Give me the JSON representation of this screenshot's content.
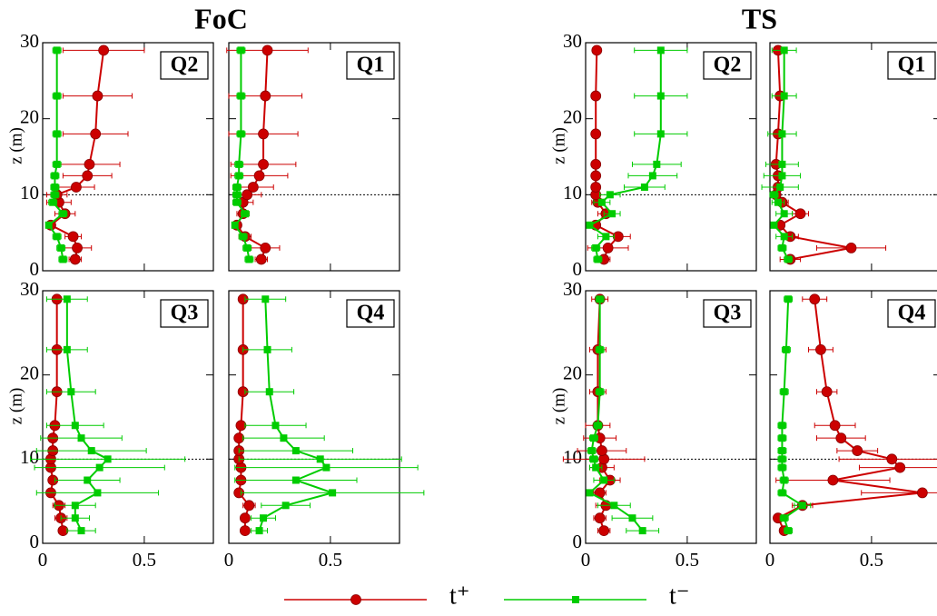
{
  "chart_data": {
    "type": "line",
    "ylabel": "z (m)",
    "z": [
      1.5,
      3,
      4.5,
      6,
      7.5,
      9,
      10,
      11,
      12.5,
      14,
      18,
      23,
      29
    ],
    "xlim": [
      0,
      0.84
    ],
    "ylim": [
      0,
      30
    ],
    "xticks": [
      0,
      0.5
    ],
    "yticks": [
      0,
      10,
      20,
      30
    ],
    "hline": 10,
    "series": [
      {
        "name": "t⁺",
        "color": "#cc0000",
        "marker": "circle"
      },
      {
        "name": "t⁻",
        "color": "#00cc00",
        "marker": "square"
      }
    ],
    "groups": [
      {
        "title": "FoC",
        "panels": [
          {
            "label": "Q2",
            "series": [
              {
                "values": [
                  0.16,
                  0.17,
                  0.15,
                  0.04,
                  0.11,
                  0.08,
                  0.07,
                  0.165,
                  0.22,
                  0.23,
                  0.26,
                  0.27,
                  0.3
                ],
                "errors": [
                  0.03,
                  0.07,
                  0.04,
                  0.02,
                  0.05,
                  0.06,
                  0.05,
                  0.09,
                  0.12,
                  0.15,
                  0.16,
                  0.17,
                  0.2
                ]
              },
              {
                "values": [
                  0.1,
                  0.09,
                  0.07,
                  0.03,
                  0.1,
                  0.05,
                  0.06,
                  0.06,
                  0.06,
                  0.07,
                  0.07,
                  0.07,
                  0.07
                ],
                "errors": [
                  0.02,
                  0.02,
                  0.02,
                  0.01,
                  0.02,
                  0.02,
                  0.02,
                  0.02,
                  0.02,
                  0.02,
                  0.02,
                  0.02,
                  0.02
                ]
              }
            ]
          },
          {
            "label": "Q1",
            "series": [
              {
                "values": [
                  0.16,
                  0.18,
                  0.08,
                  0.04,
                  0.07,
                  0.07,
                  0.09,
                  0.12,
                  0.15,
                  0.17,
                  0.17,
                  0.18,
                  0.19
                ],
                "errors": [
                  0.03,
                  0.07,
                  0.03,
                  0.02,
                  0.03,
                  0.05,
                  0.07,
                  0.1,
                  0.14,
                  0.16,
                  0.17,
                  0.18,
                  0.2
                ]
              },
              {
                "values": [
                  0.1,
                  0.09,
                  0.07,
                  0.03,
                  0.08,
                  0.04,
                  0.04,
                  0.04,
                  0.05,
                  0.05,
                  0.06,
                  0.06,
                  0.06
                ],
                "errors": [
                  0.02,
                  0.02,
                  0.02,
                  0.01,
                  0.02,
                  0.02,
                  0.02,
                  0.02,
                  0.02,
                  0.02,
                  0.02,
                  0.02,
                  0.02
                ]
              }
            ]
          },
          {
            "label": "Q3",
            "series": [
              {
                "values": [
                  0.1,
                  0.09,
                  0.08,
                  0.04,
                  0.05,
                  0.04,
                  0.04,
                  0.05,
                  0.05,
                  0.06,
                  0.07,
                  0.07,
                  0.07
                ],
                "errors": [
                  0.02,
                  0.03,
                  0.03,
                  0.02,
                  0.02,
                  0.02,
                  0.02,
                  0.02,
                  0.02,
                  0.02,
                  0.02,
                  0.02,
                  0.02
                ]
              },
              {
                "values": [
                  0.19,
                  0.16,
                  0.16,
                  0.27,
                  0.22,
                  0.28,
                  0.32,
                  0.24,
                  0.19,
                  0.16,
                  0.14,
                  0.12,
                  0.12
                ],
                "errors": [
                  0.07,
                  0.07,
                  0.1,
                  0.3,
                  0.16,
                  0.32,
                  0.38,
                  0.27,
                  0.2,
                  0.14,
                  0.12,
                  0.1,
                  0.1
                ]
              }
            ]
          },
          {
            "label": "Q4",
            "series": [
              {
                "values": [
                  0.08,
                  0.08,
                  0.1,
                  0.05,
                  0.06,
                  0.06,
                  0.05,
                  0.05,
                  0.05,
                  0.06,
                  0.07,
                  0.07,
                  0.07
                ],
                "errors": [
                  0.02,
                  0.02,
                  0.03,
                  0.02,
                  0.02,
                  0.02,
                  0.02,
                  0.02,
                  0.02,
                  0.02,
                  0.02,
                  0.02,
                  0.02
                ]
              },
              {
                "values": [
                  0.15,
                  0.17,
                  0.28,
                  0.51,
                  0.33,
                  0.48,
                  0.45,
                  0.33,
                  0.27,
                  0.23,
                  0.2,
                  0.19,
                  0.18
                ],
                "errors": [
                  0.04,
                  0.06,
                  0.12,
                  0.45,
                  0.3,
                  0.45,
                  0.4,
                  0.28,
                  0.2,
                  0.15,
                  0.12,
                  0.12,
                  0.1
                ]
              }
            ]
          }
        ]
      },
      {
        "title": "TS",
        "panels": [
          {
            "label": "Q2",
            "series": [
              {
                "values": [
                  0.09,
                  0.11,
                  0.16,
                  0.05,
                  0.1,
                  0.06,
                  0.05,
                  0.05,
                  0.05,
                  0.05,
                  0.05,
                  0.05,
                  0.055
                ],
                "errors": [
                  0.03,
                  0.1,
                  0.06,
                  0.02,
                  0.04,
                  0.03,
                  0.02,
                  0.02,
                  0.02,
                  0.02,
                  0.02,
                  0.02,
                  0.02
                ]
              },
              {
                "values": [
                  0.06,
                  0.05,
                  0.1,
                  0.02,
                  0.13,
                  0.08,
                  0.12,
                  0.29,
                  0.33,
                  0.35,
                  0.37,
                  0.37,
                  0.37
                ],
                "errors": [
                  0.02,
                  0.02,
                  0.04,
                  0.01,
                  0.04,
                  0.04,
                  0.05,
                  0.1,
                  0.12,
                  0.12,
                  0.13,
                  0.13,
                  0.13
                ]
              }
            ]
          },
          {
            "label": "Q1",
            "series": [
              {
                "values": [
                  0.1,
                  0.4,
                  0.1,
                  0.05,
                  0.15,
                  0.06,
                  0.03,
                  0.04,
                  0.04,
                  0.03,
                  0.04,
                  0.05,
                  0.04
                ],
                "errors": [
                  0.05,
                  0.17,
                  0.04,
                  0.02,
                  0.04,
                  0.03,
                  0.02,
                  0.02,
                  0.02,
                  0.02,
                  0.02,
                  0.02,
                  0.02
                ]
              },
              {
                "values": [
                  0.09,
                  0.06,
                  0.07,
                  0.02,
                  0.07,
                  0.04,
                  0.02,
                  0.05,
                  0.06,
                  0.06,
                  0.06,
                  0.07,
                  0.07
                ],
                "errors": [
                  0.02,
                  0.02,
                  0.04,
                  0.01,
                  0.04,
                  0.03,
                  0.02,
                  0.09,
                  0.09,
                  0.08,
                  0.07,
                  0.06,
                  0.06
                ]
              }
            ]
          },
          {
            "label": "Q3",
            "series": [
              {
                "values": [
                  0.09,
                  0.07,
                  0.1,
                  0.07,
                  0.12,
                  0.08,
                  0.09,
                  0.08,
                  0.07,
                  0.06,
                  0.06,
                  0.06,
                  0.07
                ],
                "errors": [
                  0.03,
                  0.03,
                  0.05,
                  0.03,
                  0.05,
                  0.06,
                  0.2,
                  0.12,
                  0.08,
                  0.06,
                  0.04,
                  0.04,
                  0.04
                ]
              },
              {
                "values": [
                  0.28,
                  0.23,
                  0.14,
                  0.02,
                  0.09,
                  0.05,
                  0.04,
                  0.03,
                  0.04,
                  0.06,
                  0.07,
                  0.07,
                  0.07
                ],
                "errors": [
                  0.08,
                  0.1,
                  0.08,
                  0.01,
                  0.05,
                  0.03,
                  0.02,
                  0.02,
                  0.02,
                  0.02,
                  0.02,
                  0.02,
                  0.02
                ]
              }
            ]
          },
          {
            "label": "Q4",
            "series": [
              {
                "values": [
                  0.07,
                  0.04,
                  0.16,
                  0.75,
                  0.31,
                  0.64,
                  0.6,
                  0.43,
                  0.35,
                  0.32,
                  0.28,
                  0.25,
                  0.22
                ],
                "errors": [
                  0.02,
                  0.02,
                  0.05,
                  0.3,
                  0.28,
                  0.2,
                  0.26,
                  0.1,
                  0.12,
                  0.1,
                  0.05,
                  0.06,
                  0.06
                ]
              },
              {
                "values": [
                  0.09,
                  0.07,
                  0.16,
                  0.06,
                  0.07,
                  0.06,
                  0.06,
                  0.06,
                  0.06,
                  0.06,
                  0.07,
                  0.08,
                  0.09
                ],
                "errors": [
                  0.02,
                  0.02,
                  0.04,
                  0.02,
                  0.02,
                  0.02,
                  0.02,
                  0.02,
                  0.02,
                  0.02,
                  0.02,
                  0.02,
                  0.02
                ]
              }
            ]
          }
        ]
      }
    ]
  }
}
